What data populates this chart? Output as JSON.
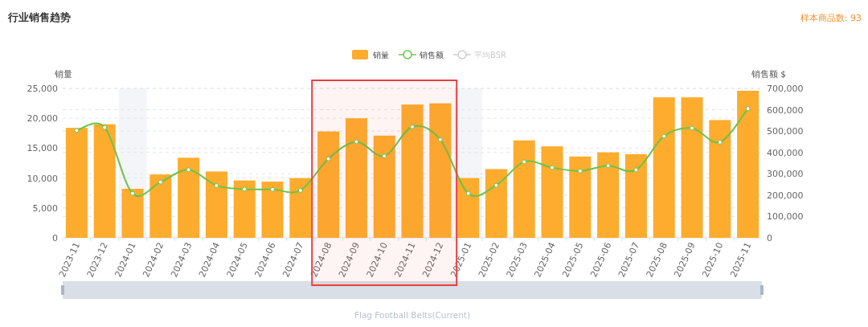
{
  "chart_data": {
    "type": "bar",
    "title": "行业销售趋势",
    "subtitle": "样本商品数: 93",
    "ylabel": "销量",
    "y2label": "销售额 $",
    "categories": [
      "2023-11",
      "2023-12",
      "2024-01",
      "2024-02",
      "2024-03",
      "2024-04",
      "2024-05",
      "2024-06",
      "2024-07",
      "2024-08",
      "2024-09",
      "2024-10",
      "2024-11",
      "2024-12",
      "2025-01",
      "2025-02",
      "2025-03",
      "2025-04",
      "2025-05",
      "2025-06",
      "2025-07",
      "2025-08",
      "2025-09",
      "2025-10",
      "2025-11"
    ],
    "series": [
      {
        "name": "销量",
        "color": "#fdac2e",
        "values": [
          18400,
          19000,
          8200,
          10600,
          13400,
          11100,
          9600,
          9400,
          10000,
          17800,
          20000,
          17100,
          22300,
          22500,
          10000,
          11500,
          16300,
          15300,
          13600,
          14300,
          14000,
          23500,
          23500,
          19700,
          24600
        ]
      },
      {
        "name": "销售额",
        "type": "line",
        "axis": "y2",
        "color": "#6cc24a",
        "marker": "circle",
        "values": [
          503000,
          517000,
          208000,
          261000,
          319000,
          245000,
          228000,
          227000,
          222000,
          370000,
          450000,
          383000,
          520000,
          460000,
          208000,
          246000,
          356000,
          329000,
          313000,
          338000,
          318000,
          476000,
          514000,
          448000,
          605000
        ]
      },
      {
        "name": "平均BSR",
        "type": "line",
        "axis": "y2",
        "color": "#cccccc",
        "marker": "circle",
        "values": [
          null,
          null,
          null,
          null,
          null,
          null,
          null,
          null,
          null,
          null,
          null,
          null,
          null,
          null,
          null,
          null,
          null,
          null,
          null,
          null,
          null,
          null,
          null,
          null,
          null
        ]
      }
    ],
    "ylim": [
      0,
      25000
    ],
    "yticks": [
      0,
      {
        "value": 5000,
        "label": "5,000"
      },
      {
        "value": 10000,
        "label": "10,000"
      },
      {
        "value": 15000,
        "label": "15,000"
      },
      {
        "value": 20000,
        "label": "20,000"
      },
      {
        "value": 25000,
        "label": "25,000"
      }
    ],
    "y2lim": [
      0,
      700000
    ],
    "y2ticks": [
      0,
      {
        "value": 100000,
        "label": "100,000"
      },
      {
        "value": 200000,
        "label": "200,000"
      },
      {
        "value": 300000,
        "label": "300,000"
      },
      {
        "value": 400000,
        "label": "400,000"
      },
      {
        "value": 500000,
        "label": "500,000"
      },
      {
        "value": 600000,
        "label": "600,000"
      },
      {
        "value": 700000,
        "label": "700,000"
      }
    ],
    "grid": "y",
    "legend": "top",
    "bands": [
      {
        "axis": "x",
        "from": "2024-01",
        "to": "2024-01",
        "color": "#f3f5f9"
      },
      {
        "axis": "x",
        "from": "2025-01",
        "to": "2025-01",
        "color": "#f3f5f9"
      },
      {
        "axis": "x",
        "from": "2024-08",
        "to": "2024-12",
        "color": "#e8403f"
      }
    ],
    "annotations": [
      "Flag Football Belts(Current)"
    ]
  }
}
